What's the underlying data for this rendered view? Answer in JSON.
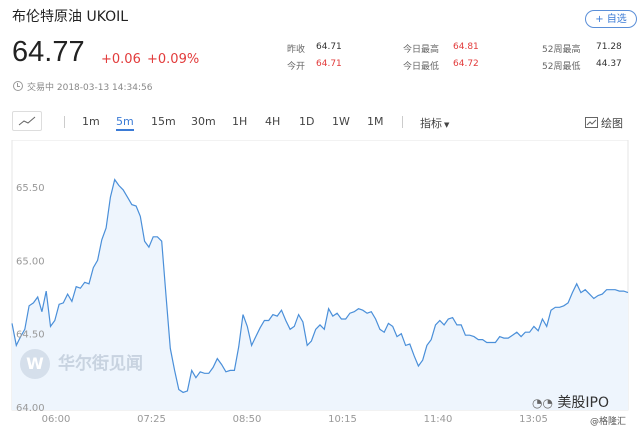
{
  "header": {
    "title": "布伦特原油  UKOIL",
    "add_label": "+ 自选",
    "price": "64.77",
    "change": "+0.06",
    "change_pct": "+0.09%",
    "status_time": "交易中 2018-03-13 14:34:56"
  },
  "stats": {
    "prev_close_label": "昨收",
    "prev_close": "64.71",
    "open_label": "今开",
    "open": "64.71",
    "day_high_label": "今日最高",
    "day_high": "64.81",
    "day_low_label": "今日最低",
    "day_low": "64.72",
    "wk52_high_label": "52周最高",
    "wk52_high": "71.28",
    "wk52_low_label": "52周最低",
    "wk52_low": "44.37"
  },
  "toolbar": {
    "intervals": [
      "1m",
      "5m",
      "15m",
      "30m",
      "1H",
      "4H",
      "1D",
      "1W",
      "1M"
    ],
    "active": "5m",
    "indicator_label": "指标",
    "draw_label": "绘图"
  },
  "watermark": {
    "logo": "W",
    "text": "华尔街见闻"
  },
  "footer": {
    "wechat": "美股IPO",
    "signature": "@格隆汇"
  },
  "colors": {
    "accent": "#3b7bd6",
    "up": "#e23b3b",
    "line": "#4a8fd9",
    "fill": "#eef5fd"
  },
  "chart_data": {
    "type": "area",
    "x_ticks": [
      "06:00",
      "07:25",
      "08:50",
      "10:15",
      "11:40",
      "13:05"
    ],
    "y_ticks": [
      65.5,
      65.0,
      64.5,
      64.0
    ],
    "ylim": [
      63.98,
      65.82
    ],
    "values": [
      64.57,
      64.42,
      64.48,
      64.53,
      64.69,
      64.71,
      64.75,
      64.65,
      64.79,
      64.55,
      64.59,
      64.7,
      64.71,
      64.77,
      64.72,
      64.82,
      64.81,
      64.85,
      64.84,
      64.95,
      65.0,
      65.14,
      65.22,
      65.43,
      65.55,
      65.51,
      65.48,
      65.43,
      65.38,
      65.37,
      65.3,
      65.13,
      65.09,
      65.16,
      65.16,
      65.13,
      64.76,
      64.4,
      64.25,
      64.12,
      64.1,
      64.11,
      64.25,
      64.2,
      64.24,
      64.23,
      64.23,
      64.27,
      64.33,
      64.29,
      64.24,
      64.25,
      64.25,
      64.41,
      64.63,
      64.55,
      64.42,
      64.48,
      64.54,
      64.59,
      64.59,
      64.63,
      64.62,
      64.66,
      64.59,
      64.53,
      64.55,
      64.63,
      64.58,
      64.42,
      64.45,
      64.53,
      64.56,
      64.53,
      64.67,
      64.62,
      64.64,
      64.6,
      64.6,
      64.64,
      64.65,
      64.67,
      64.66,
      64.64,
      64.65,
      64.6,
      64.53,
      64.51,
      64.57,
      64.55,
      64.48,
      64.5,
      64.42,
      64.43,
      64.35,
      64.28,
      64.32,
      64.42,
      64.46,
      64.56,
      64.59,
      64.56,
      64.6,
      64.61,
      64.56,
      64.56,
      64.49,
      64.49,
      64.48,
      64.46,
      64.46,
      64.44,
      64.44,
      64.44,
      64.48,
      64.47,
      64.47,
      64.49,
      64.51,
      64.48,
      64.51,
      64.51,
      64.55,
      64.52,
      64.6,
      64.55,
      64.66,
      64.68,
      64.68,
      64.69,
      64.71,
      64.78,
      64.84,
      64.78,
      64.8,
      64.77,
      64.74,
      64.76,
      64.77,
      64.8,
      64.8,
      64.8,
      64.79,
      64.79,
      64.78
    ]
  }
}
